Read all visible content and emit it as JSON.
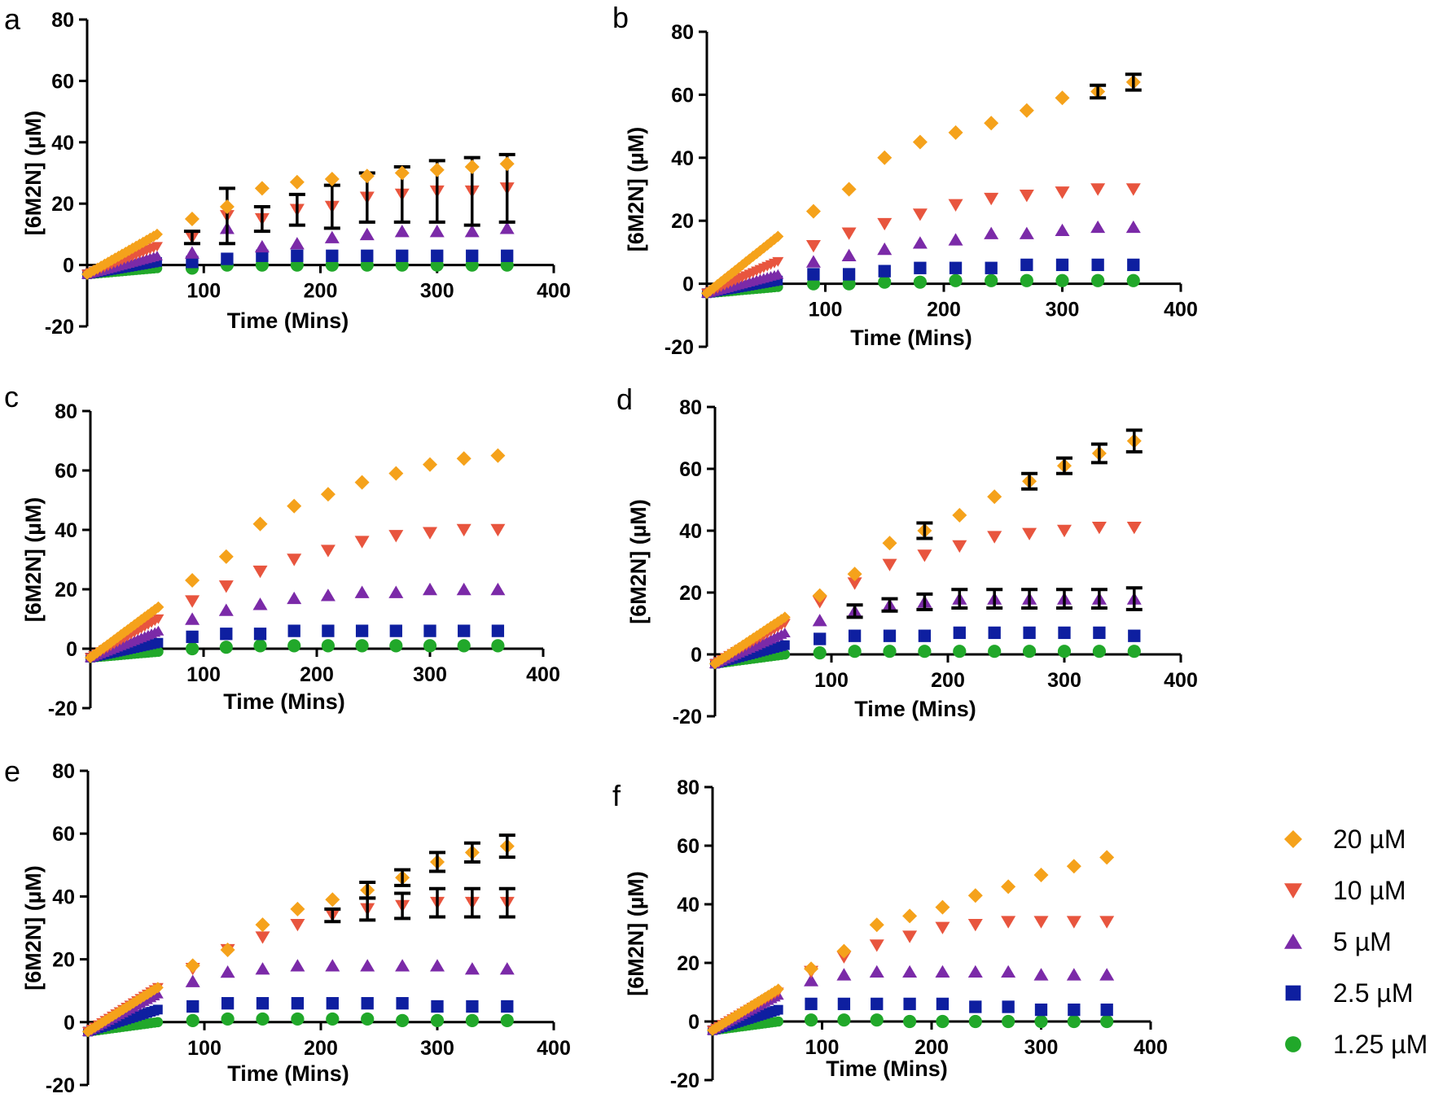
{
  "figure": {
    "panels_order": [
      "a",
      "b",
      "c",
      "d",
      "e",
      "f"
    ]
  },
  "legend": {
    "items": [
      {
        "label": "20 µM",
        "color": "#F5A21B",
        "marker": "diamond"
      },
      {
        "label": "10 µM",
        "color": "#E8553E",
        "marker": "triangle-down"
      },
      {
        "label": "5 µM",
        "color": "#7B2AA8",
        "marker": "triangle-up"
      },
      {
        "label": "2.5 µM",
        "color": "#0E1FA0",
        "marker": "square"
      },
      {
        "label": "1.25 µM",
        "color": "#21A82A",
        "marker": "circle"
      }
    ]
  },
  "chart_data": [
    {
      "panel": "a",
      "type": "scatter",
      "xlabel": "Time (Mins)",
      "ylabel": "[6M2N] (µM)",
      "xlim": [
        0,
        400
      ],
      "ylim": [
        -20,
        80
      ],
      "xticks": [
        100,
        200,
        300,
        400
      ],
      "yticks": [
        -20,
        0,
        20,
        40,
        60,
        80
      ],
      "grid": false,
      "series": [
        {
          "name": "20 µM",
          "early_end": 10,
          "x": [
            90,
            120,
            150,
            180,
            210,
            240,
            270,
            300,
            330,
            360
          ],
          "y": [
            15,
            19,
            25,
            27,
            28,
            29,
            30,
            31,
            32,
            33
          ]
        },
        {
          "name": "10 µM",
          "early_end": 6,
          "x": [
            90,
            120,
            150,
            180,
            210,
            240,
            270,
            300,
            330,
            360
          ],
          "y": [
            9,
            16,
            15,
            18,
            19,
            22,
            23,
            24,
            24,
            25
          ],
          "err": [
            2,
            9,
            4,
            5,
            7,
            8,
            9,
            10,
            11,
            11
          ]
        },
        {
          "name": "5 µM",
          "early_end": 3,
          "x": [
            90,
            120,
            150,
            180,
            210,
            240,
            270,
            300,
            330,
            360
          ],
          "y": [
            4,
            12,
            6,
            7,
            9,
            10,
            11,
            11,
            11,
            12
          ]
        },
        {
          "name": "2.5 µM",
          "early_end": 1,
          "x": [
            90,
            120,
            150,
            180,
            210,
            240,
            270,
            300,
            330,
            360
          ],
          "y": [
            1,
            2,
            3,
            3,
            3,
            3,
            3,
            3,
            3,
            3
          ]
        },
        {
          "name": "1.25 µM",
          "early_end": -1,
          "x": [
            90,
            120,
            150,
            180,
            210,
            240,
            270,
            300,
            330,
            360
          ],
          "y": [
            -1,
            0,
            0,
            0,
            0,
            0,
            0,
            0,
            0,
            0
          ]
        }
      ]
    },
    {
      "panel": "b",
      "type": "scatter",
      "xlabel": "Time (Mins)",
      "ylabel": "[6M2N] (µM)",
      "xlim": [
        0,
        400
      ],
      "ylim": [
        -20,
        80
      ],
      "xticks": [
        100,
        200,
        300,
        400
      ],
      "yticks": [
        -20,
        0,
        20,
        40,
        60,
        80
      ],
      "grid": false,
      "series": [
        {
          "name": "20 µM",
          "early_end": 15,
          "x": [
            90,
            120,
            150,
            180,
            210,
            240,
            270,
            300,
            330,
            360
          ],
          "y": [
            23,
            30,
            40,
            45,
            48,
            51,
            55,
            59,
            61,
            64
          ],
          "err": [
            0,
            0,
            0,
            0,
            0,
            0,
            0,
            0,
            2,
            2.5
          ]
        },
        {
          "name": "10 µM",
          "early_end": 7,
          "x": [
            90,
            120,
            150,
            180,
            210,
            240,
            270,
            300,
            330,
            360
          ],
          "y": [
            12,
            16,
            19,
            22,
            25,
            27,
            28,
            29,
            30,
            30
          ]
        },
        {
          "name": "5 µM",
          "early_end": 3,
          "x": [
            90,
            120,
            150,
            180,
            210,
            240,
            270,
            300,
            330,
            360
          ],
          "y": [
            7,
            9,
            11,
            13,
            14,
            16,
            16,
            17,
            18,
            18
          ]
        },
        {
          "name": "2.5 µM",
          "early_end": 1,
          "x": [
            90,
            120,
            150,
            180,
            210,
            240,
            270,
            300,
            330,
            360
          ],
          "y": [
            3,
            3,
            4,
            5,
            5,
            5,
            6,
            6,
            6,
            6
          ]
        },
        {
          "name": "1.25 µM",
          "early_end": -1,
          "x": [
            90,
            120,
            150,
            180,
            210,
            240,
            270,
            300,
            330,
            360
          ],
          "y": [
            0,
            0,
            0.5,
            0.5,
            1,
            1,
            1,
            1,
            1,
            1
          ]
        }
      ]
    },
    {
      "panel": "c",
      "type": "scatter",
      "xlabel": "Time (Mins)",
      "ylabel": "[6M2N] (µM)",
      "xlim": [
        0,
        400
      ],
      "ylim": [
        -20,
        80
      ],
      "xticks": [
        100,
        200,
        300,
        400
      ],
      "yticks": [
        -20,
        0,
        20,
        40,
        60,
        80
      ],
      "grid": false,
      "series": [
        {
          "name": "20 µM",
          "early_end": 14,
          "x": [
            90,
            120,
            150,
            180,
            210,
            240,
            270,
            300,
            330,
            360
          ],
          "y": [
            23,
            31,
            42,
            48,
            52,
            56,
            59,
            62,
            64,
            65
          ]
        },
        {
          "name": "10 µM",
          "early_end": 10,
          "x": [
            90,
            120,
            150,
            180,
            210,
            240,
            270,
            300,
            330,
            360
          ],
          "y": [
            16,
            21,
            26,
            30,
            33,
            36,
            38,
            39,
            40,
            40
          ]
        },
        {
          "name": "5 µM",
          "early_end": 6,
          "x": [
            90,
            120,
            150,
            180,
            210,
            240,
            270,
            300,
            330,
            360
          ],
          "y": [
            10,
            13,
            15,
            17,
            18,
            19,
            19,
            20,
            20,
            20
          ]
        },
        {
          "name": "2.5 µM",
          "early_end": 2,
          "x": [
            90,
            120,
            150,
            180,
            210,
            240,
            270,
            300,
            330,
            360
          ],
          "y": [
            4,
            5,
            5,
            6,
            6,
            6,
            6,
            6,
            6,
            6
          ]
        },
        {
          "name": "1.25 µM",
          "early_end": -1,
          "x": [
            90,
            120,
            150,
            180,
            210,
            240,
            270,
            300,
            330,
            360
          ],
          "y": [
            0,
            0.5,
            1,
            1,
            1,
            1,
            1,
            1,
            1,
            1
          ]
        }
      ]
    },
    {
      "panel": "d",
      "type": "scatter",
      "xlabel": "Time (Mins)",
      "ylabel": "[6M2N] (µM)",
      "xlim": [
        0,
        400
      ],
      "ylim": [
        -20,
        80
      ],
      "xticks": [
        100,
        200,
        300,
        400
      ],
      "yticks": [
        -20,
        0,
        20,
        40,
        60,
        80
      ],
      "grid": false,
      "series": [
        {
          "name": "20 µM",
          "early_end": 12,
          "x": [
            90,
            120,
            150,
            180,
            210,
            240,
            270,
            300,
            330,
            360
          ],
          "y": [
            19,
            26,
            36,
            40,
            45,
            51,
            56,
            61,
            65,
            69
          ],
          "err": [
            0,
            0,
            0,
            2.5,
            0,
            0,
            2.5,
            2.5,
            3,
            3.5
          ]
        },
        {
          "name": "10 µM",
          "early_end": 10,
          "x": [
            90,
            120,
            150,
            180,
            210,
            240,
            270,
            300,
            330,
            360
          ],
          "y": [
            17,
            23,
            29,
            32,
            35,
            38,
            39,
            40,
            41,
            41
          ]
        },
        {
          "name": "5 µM",
          "early_end": 7,
          "x": [
            90,
            120,
            150,
            180,
            210,
            240,
            270,
            300,
            330,
            360
          ],
          "y": [
            11,
            14,
            16,
            17,
            18,
            18,
            18,
            18,
            18,
            18
          ],
          "err": [
            0,
            2,
            2,
            2.5,
            3,
            3,
            3,
            3,
            3,
            3.5
          ]
        },
        {
          "name": "2.5 µM",
          "early_end": 3,
          "x": [
            90,
            120,
            150,
            180,
            210,
            240,
            270,
            300,
            330,
            360
          ],
          "y": [
            5,
            6,
            6,
            6,
            7,
            7,
            7,
            7,
            7,
            6
          ]
        },
        {
          "name": "1.25 µM",
          "early_end": 0,
          "x": [
            90,
            120,
            150,
            180,
            210,
            240,
            270,
            300,
            330,
            360
          ],
          "y": [
            0.5,
            1,
            1,
            1,
            1,
            1,
            1,
            1,
            1,
            1
          ]
        }
      ]
    },
    {
      "panel": "e",
      "type": "scatter",
      "xlabel": "Time (Mins)",
      "ylabel": "[6M2N] (µM)",
      "xlim": [
        0,
        400
      ],
      "ylim": [
        -20,
        80
      ],
      "xticks": [
        100,
        200,
        300,
        400
      ],
      "yticks": [
        -20,
        0,
        20,
        40,
        60,
        80
      ],
      "grid": false,
      "series": [
        {
          "name": "20 µM",
          "early_end": 11,
          "x": [
            90,
            120,
            150,
            180,
            210,
            240,
            270,
            300,
            330,
            360
          ],
          "y": [
            18,
            23,
            31,
            36,
            39,
            42,
            46,
            51,
            54,
            56
          ],
          "err": [
            0,
            0,
            0,
            0,
            0,
            2.5,
            2.5,
            3,
            3,
            3.5
          ]
        },
        {
          "name": "10 µM",
          "early_end": 11,
          "x": [
            90,
            120,
            150,
            180,
            210,
            240,
            270,
            300,
            330,
            360
          ],
          "y": [
            17,
            23,
            27,
            31,
            34,
            36,
            37,
            38,
            38,
            38
          ],
          "err": [
            0,
            0,
            0,
            0,
            2,
            3.5,
            4,
            4.5,
            4.5,
            4.5
          ]
        },
        {
          "name": "5 µM",
          "early_end": 9,
          "x": [
            90,
            120,
            150,
            180,
            210,
            240,
            270,
            300,
            330,
            360
          ],
          "y": [
            13,
            16,
            17,
            18,
            18,
            18,
            18,
            18,
            17,
            17
          ]
        },
        {
          "name": "2.5 µM",
          "early_end": 4,
          "x": [
            90,
            120,
            150,
            180,
            210,
            240,
            270,
            300,
            330,
            360
          ],
          "y": [
            5,
            6,
            6,
            6,
            6,
            6,
            6,
            5,
            5,
            5
          ]
        },
        {
          "name": "1.25 µM",
          "early_end": 0,
          "x": [
            90,
            120,
            150,
            180,
            210,
            240,
            270,
            300,
            330,
            360
          ],
          "y": [
            0.5,
            1,
            1,
            1,
            1,
            1,
            0.5,
            0.5,
            0.5,
            0.5
          ]
        }
      ]
    },
    {
      "panel": "f",
      "type": "scatter",
      "xlabel": "Time (Mins)",
      "ylabel": "[6M2N] (µM)",
      "xlim": [
        0,
        400
      ],
      "ylim": [
        -20,
        80
      ],
      "xticks": [
        100,
        200,
        300,
        400
      ],
      "yticks": [
        -20,
        0,
        20,
        40,
        60,
        80
      ],
      "grid": false,
      "series": [
        {
          "name": "20 µM",
          "early_end": 11,
          "x": [
            90,
            120,
            150,
            180,
            210,
            240,
            270,
            300,
            330,
            360
          ],
          "y": [
            18,
            24,
            33,
            36,
            39,
            43,
            46,
            50,
            53,
            56
          ]
        },
        {
          "name": "10 µM",
          "early_end": 10,
          "x": [
            90,
            120,
            150,
            180,
            210,
            240,
            270,
            300,
            330,
            360
          ],
          "y": [
            17,
            22,
            26,
            29,
            32,
            33,
            34,
            34,
            34,
            34
          ]
        },
        {
          "name": "5 µM",
          "early_end": 9,
          "x": [
            90,
            120,
            150,
            180,
            210,
            240,
            270,
            300,
            330,
            360
          ],
          "y": [
            14,
            16,
            17,
            17,
            17,
            17,
            17,
            16,
            16,
            16
          ]
        },
        {
          "name": "2.5 µM",
          "early_end": 4,
          "x": [
            90,
            120,
            150,
            180,
            210,
            240,
            270,
            300,
            330,
            360
          ],
          "y": [
            6,
            6,
            6,
            6,
            6,
            5,
            5,
            4,
            4,
            4
          ]
        },
        {
          "name": "1.25 µM",
          "early_end": 0,
          "x": [
            90,
            120,
            150,
            180,
            210,
            240,
            270,
            300,
            330,
            360
          ],
          "y": [
            0.5,
            0.5,
            0.5,
            0,
            0,
            0,
            0,
            0,
            0,
            0
          ]
        }
      ]
    }
  ]
}
